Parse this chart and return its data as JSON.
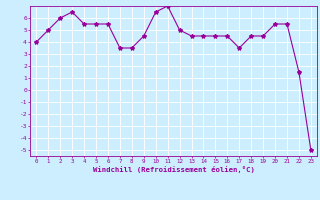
{
  "x": [
    0,
    1,
    2,
    3,
    4,
    5,
    6,
    7,
    8,
    9,
    10,
    11,
    12,
    13,
    14,
    15,
    16,
    17,
    18,
    19,
    20,
    21,
    22,
    23
  ],
  "y": [
    4.0,
    5.0,
    6.0,
    6.5,
    5.5,
    5.5,
    5.5,
    3.5,
    3.5,
    4.5,
    6.5,
    7.0,
    5.0,
    4.5,
    4.5,
    4.5,
    4.5,
    3.5,
    4.5,
    4.5,
    5.5,
    5.5,
    1.5,
    -5.0
  ],
  "line_color": "#990099",
  "marker": "*",
  "xlabel": "Windchill (Refroidissement éolien,°C)",
  "xlim": [
    -0.5,
    23.5
  ],
  "ylim": [
    -5.5,
    7.0
  ],
  "yticks": [
    -5,
    -4,
    -3,
    -2,
    -1,
    0,
    1,
    2,
    3,
    4,
    5,
    6
  ],
  "xticks": [
    0,
    1,
    2,
    3,
    4,
    5,
    6,
    7,
    8,
    9,
    10,
    11,
    12,
    13,
    14,
    15,
    16,
    17,
    18,
    19,
    20,
    21,
    22,
    23
  ],
  "bg_color": "#cceeff",
  "grid_color": "#ffffff",
  "label_color": "#990099",
  "tick_color": "#990099"
}
